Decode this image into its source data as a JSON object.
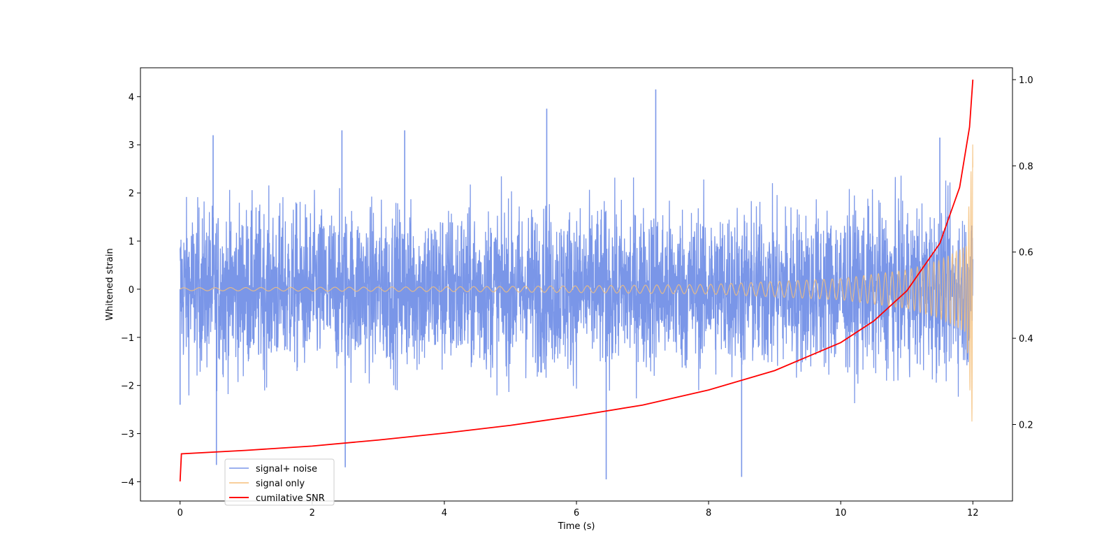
{
  "chart_data": {
    "type": "line",
    "title": "",
    "xlabel": "Time (s)",
    "ylabel": "Whitened strain",
    "y2label": "",
    "xlim": [
      -0.6,
      12.6
    ],
    "ylim": [
      -4.4,
      4.6
    ],
    "y2lim": [
      0.0225,
      1.0275
    ],
    "x_ticks": [
      0,
      2,
      4,
      6,
      8,
      10,
      12
    ],
    "y_ticks": [
      -4,
      -3,
      -2,
      -1,
      0,
      1,
      2,
      3,
      4
    ],
    "y2_ticks": [
      0.2,
      0.4,
      0.6,
      0.8,
      1.0
    ],
    "x_tick_labels": [
      "0",
      "2",
      "4",
      "6",
      "8",
      "10",
      "12"
    ],
    "y_tick_labels": [
      "−4",
      "−3",
      "−2",
      "−1",
      "0",
      "1",
      "2",
      "3",
      "4"
    ],
    "y2_tick_labels": [
      "0.2",
      "0.4",
      "0.6",
      "0.8",
      "1.0"
    ],
    "grid": false,
    "legend_position": "lower-left",
    "series": [
      {
        "name": "signal+ noise",
        "axis": "left",
        "color": "#7a96e8",
        "style": "noise",
        "x_range": [
          0,
          12
        ],
        "typical_range": [
          -2.3,
          2.3
        ],
        "extremes": [
          {
            "x": 7.2,
            "y": 4.15
          },
          {
            "x": 5.55,
            "y": 3.75
          },
          {
            "x": 6.45,
            "y": -3.95
          },
          {
            "x": 8.5,
            "y": -3.9
          },
          {
            "x": 2.5,
            "y": -3.7
          },
          {
            "x": 0.55,
            "y": -3.65
          },
          {
            "x": 2.45,
            "y": 3.3
          },
          {
            "x": 3.4,
            "y": 3.3
          },
          {
            "x": 11.5,
            "y": 3.15
          },
          {
            "x": 0.5,
            "y": 3.2
          },
          {
            "x": 0,
            "y": -2.4
          }
        ]
      },
      {
        "name": "signal only",
        "axis": "left",
        "color": "#f5bf7a",
        "style": "chirp",
        "x_range": [
          0,
          12
        ],
        "amplitude_points": [
          {
            "x": 0.0,
            "y": 0.03
          },
          {
            "x": 2.0,
            "y": 0.04
          },
          {
            "x": 4.0,
            "y": 0.05
          },
          {
            "x": 6.0,
            "y": 0.07
          },
          {
            "x": 8.0,
            "y": 0.1
          },
          {
            "x": 10.0,
            "y": 0.22
          },
          {
            "x": 11.0,
            "y": 0.4
          },
          {
            "x": 11.5,
            "y": 0.6
          },
          {
            "x": 11.9,
            "y": 0.9
          },
          {
            "x": 12.0,
            "y": 3.05
          }
        ]
      },
      {
        "name": "cumilative SNR",
        "axis": "right",
        "color": "#ff0000",
        "style": "line",
        "x": [
          0,
          0.02,
          1,
          2,
          3,
          4,
          5,
          6,
          7,
          8,
          9,
          10,
          10.5,
          11,
          11.5,
          11.8,
          11.95,
          12
        ],
        "y": [
          0.068,
          0.132,
          0.14,
          0.15,
          0.164,
          0.18,
          0.198,
          0.22,
          0.245,
          0.28,
          0.325,
          0.39,
          0.44,
          0.51,
          0.62,
          0.75,
          0.89,
          1.0
        ]
      }
    ]
  }
}
